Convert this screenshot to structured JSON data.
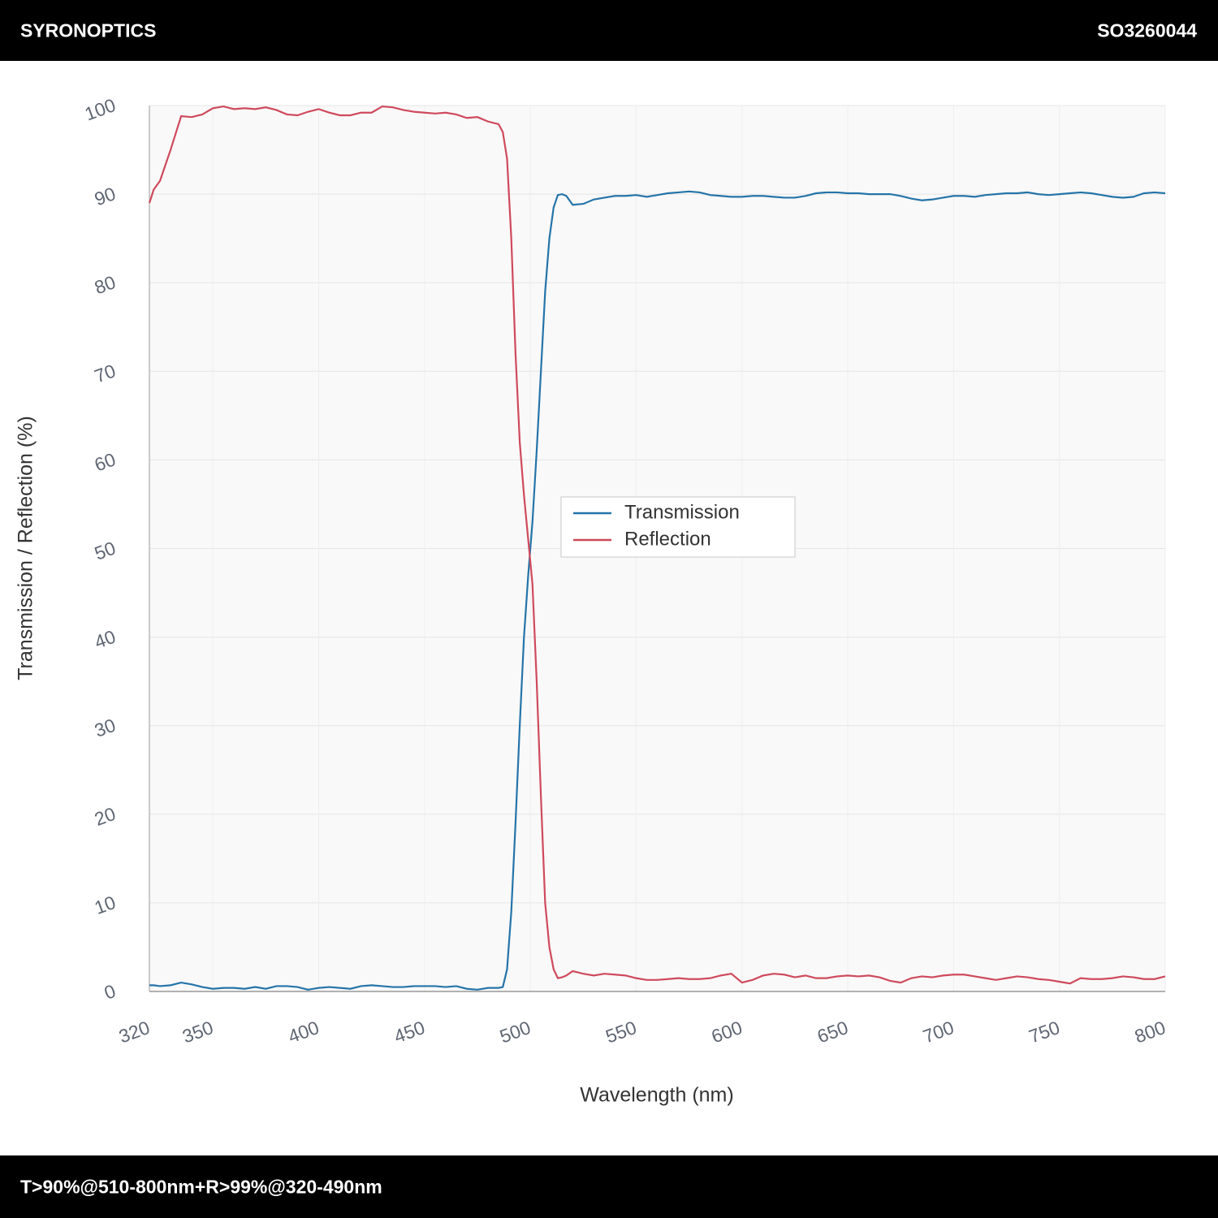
{
  "header": {
    "brand": "SYRONOPTICS",
    "code": "SO3260044"
  },
  "footer": {
    "text": "T>90%@510-800nm+R>99%@320-490nm"
  },
  "chart_data": {
    "type": "line",
    "xlabel": "Wavelength (nm)",
    "ylabel": "Transmission / Reflection (%)",
    "xlim": [
      320,
      800
    ],
    "ylim": [
      0,
      100
    ],
    "xticks": [
      320,
      350,
      400,
      450,
      500,
      550,
      600,
      650,
      700,
      750,
      800
    ],
    "yticks": [
      0,
      10,
      20,
      30,
      40,
      50,
      60,
      70,
      80,
      90,
      100
    ],
    "grid": true,
    "legend": "center",
    "x": [
      320,
      322,
      325,
      330,
      335,
      340,
      345,
      350,
      355,
      360,
      365,
      370,
      375,
      380,
      385,
      390,
      395,
      400,
      405,
      410,
      415,
      420,
      425,
      430,
      435,
      440,
      445,
      450,
      455,
      460,
      465,
      470,
      475,
      480,
      485,
      487,
      489,
      491,
      493,
      495,
      497,
      499,
      501,
      503,
      505,
      507,
      509,
      511,
      513,
      515,
      517,
      520,
      525,
      530,
      535,
      540,
      545,
      550,
      555,
      560,
      565,
      570,
      575,
      580,
      585,
      590,
      595,
      600,
      605,
      610,
      615,
      620,
      625,
      630,
      635,
      640,
      645,
      650,
      655,
      660,
      665,
      670,
      675,
      680,
      685,
      690,
      695,
      700,
      705,
      710,
      715,
      720,
      725,
      730,
      735,
      740,
      745,
      750,
      755,
      760,
      765,
      770,
      775,
      780,
      785,
      790,
      795,
      800
    ],
    "series": [
      {
        "name": "Transmission",
        "color": "#2574a9",
        "values": [
          0.7,
          0.7,
          0.6,
          0.7,
          1.0,
          0.8,
          0.5,
          0.3,
          0.4,
          0.4,
          0.3,
          0.5,
          0.3,
          0.6,
          0.6,
          0.5,
          0.2,
          0.4,
          0.5,
          0.4,
          0.3,
          0.6,
          0.7,
          0.6,
          0.5,
          0.5,
          0.6,
          0.6,
          0.6,
          0.5,
          0.6,
          0.3,
          0.2,
          0.4,
          0.4,
          0.5,
          2.5,
          9,
          19,
          30,
          40,
          47,
          53,
          61,
          70,
          79,
          85,
          88.5,
          89.9,
          90,
          89.8,
          88.8,
          88.9,
          89.4,
          89.6,
          89.8,
          89.8,
          89.9,
          89.7,
          89.9,
          90.1,
          90.2,
          90.3,
          90.2,
          89.9,
          89.8,
          89.7,
          89.7,
          89.8,
          89.8,
          89.7,
          89.6,
          89.6,
          89.8,
          90.1,
          90.2,
          90.2,
          90.1,
          90.1,
          90.0,
          90.0,
          90.0,
          89.8,
          89.5,
          89.3,
          89.4,
          89.6,
          89.8,
          89.8,
          89.7,
          89.9,
          90.0,
          90.1,
          90.1,
          90.2,
          90.0,
          89.9,
          90.0,
          90.1,
          90.2,
          90.1,
          89.9,
          89.7,
          89.6,
          89.7,
          90.1,
          90.2,
          90.1
        ]
      },
      {
        "name": "Reflection",
        "color": "#cf4a5c",
        "values": [
          89,
          90.5,
          91.5,
          95,
          98.8,
          98.7,
          99.0,
          99.7,
          99.9,
          99.6,
          99.7,
          99.6,
          99.8,
          99.5,
          99.0,
          98.9,
          99.3,
          99.6,
          99.2,
          98.9,
          98.9,
          99.2,
          99.2,
          99.9,
          99.8,
          99.5,
          99.3,
          99.2,
          99.1,
          99.2,
          99.0,
          98.6,
          98.7,
          98.2,
          97.9,
          97,
          94,
          85,
          72,
          62,
          56,
          51,
          46,
          35,
          22,
          10,
          5,
          2.5,
          1.5,
          1.6,
          1.8,
          2.3,
          2.0,
          1.8,
          2.0,
          1.9,
          1.8,
          1.5,
          1.3,
          1.3,
          1.4,
          1.5,
          1.4,
          1.4,
          1.5,
          1.8,
          2.0,
          1.0,
          1.3,
          1.8,
          2.0,
          1.9,
          1.6,
          1.8,
          1.5,
          1.5,
          1.7,
          1.8,
          1.7,
          1.8,
          1.6,
          1.2,
          1.0,
          1.5,
          1.7,
          1.6,
          1.8,
          1.9,
          1.9,
          1.7,
          1.5,
          1.3,
          1.5,
          1.7,
          1.6,
          1.4,
          1.3,
          1.1,
          0.9,
          1.5,
          1.4,
          1.4,
          1.5,
          1.7,
          1.6,
          1.4,
          1.4,
          1.7
        ]
      }
    ]
  }
}
